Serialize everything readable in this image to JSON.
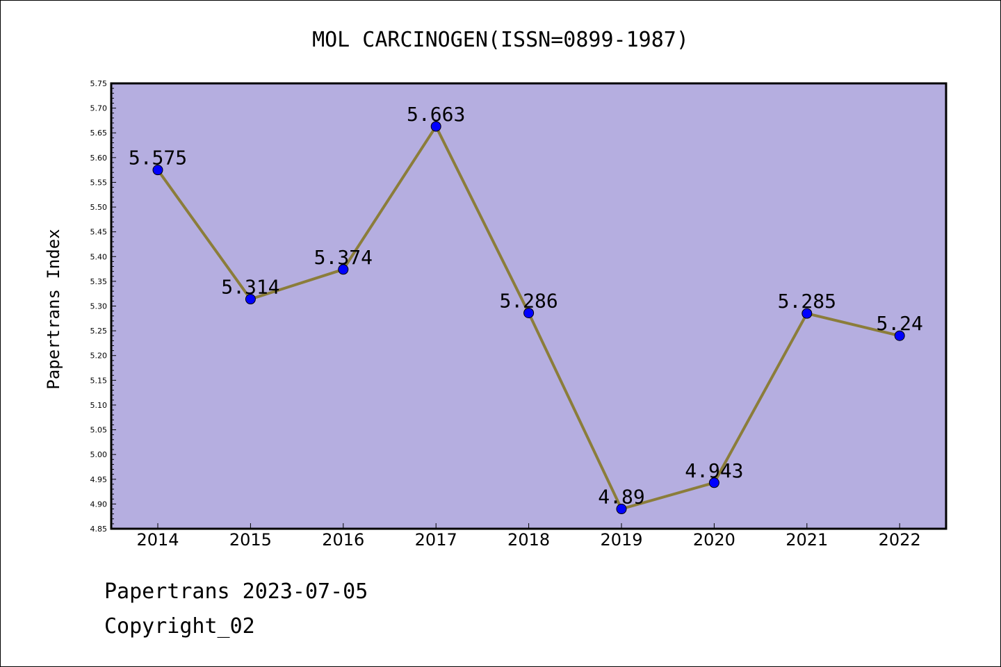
{
  "chart_data": {
    "type": "line",
    "title": "MOL CARCINOGEN(ISSN=0899-1987)",
    "xlabel": "",
    "ylabel": "Papertrans Index",
    "categories": [
      "2014",
      "2015",
      "2016",
      "2017",
      "2018",
      "2019",
      "2020",
      "2021",
      "2022"
    ],
    "series": [
      {
        "values": [
          5.575,
          5.314,
          5.374,
          5.663,
          5.286,
          4.89,
          4.943,
          5.285,
          5.24
        ]
      }
    ],
    "data_labels": [
      "5.575",
      "5.314",
      "5.374",
      "5.663",
      "5.286",
      "4.89",
      "4.943",
      "5.285",
      "5.24"
    ],
    "ylim": [
      4.85,
      5.75
    ],
    "yticks": [
      "4.85",
      "4.90",
      "4.95",
      "5.00",
      "5.05",
      "5.10",
      "5.15",
      "5.20",
      "5.25",
      "5.30",
      "5.35",
      "5.40",
      "5.45",
      "5.50",
      "5.55",
      "5.60",
      "5.65",
      "5.70",
      "5.75"
    ],
    "grid": false,
    "colors": {
      "plot_background": "#b5aee0",
      "line": "#8b7d3a",
      "marker": "#0000ff"
    }
  },
  "footer": {
    "date_text": "Papertrans 2023-07-05",
    "copyright_text": "Copyright_02"
  }
}
